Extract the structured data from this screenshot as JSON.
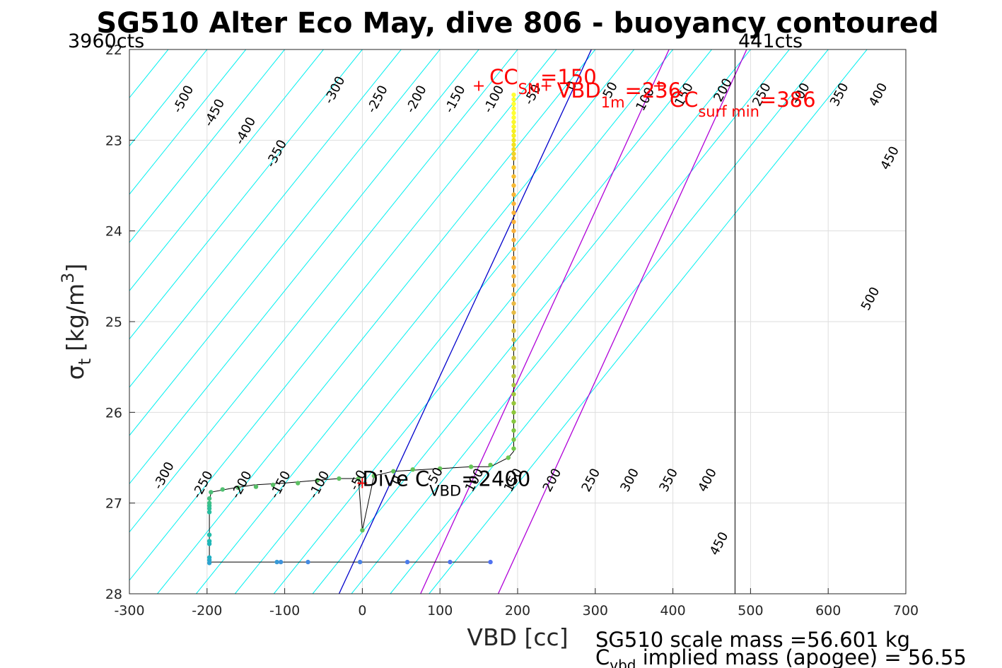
{
  "chart_data": {
    "type": "scatter",
    "title": "SG510 Alter Eco May, dive 806 - buoyancy contoured",
    "xlabel": "VBD [cc]",
    "ylabel_main": "σ",
    "ylabel_sub": "t",
    "ylabel_unit": "[kg/m",
    "ylabel_sup": "3",
    "ylabel_close": "]",
    "xlim": [
      -300,
      700
    ],
    "ylim": [
      22,
      28
    ],
    "y_reversed": true,
    "grid": true,
    "xticks": [
      "-300",
      "-200",
      "-100",
      "0",
      "100",
      "200",
      "300",
      "400",
      "500",
      "600",
      "700"
    ],
    "yticks": [
      "22",
      "23",
      "24",
      "25",
      "26",
      "27",
      "28"
    ],
    "counts_left": "3960cts",
    "counts_right": "441cts",
    "vline_x": 480,
    "contour_slope_cc_per_sigma": -94,
    "contour_levels": [
      -600,
      -550,
      -500,
      -450,
      -400,
      -350,
      -300,
      -250,
      -200,
      -150,
      -100,
      -50,
      0,
      50,
      100,
      150,
      200,
      250,
      300,
      350,
      400,
      450,
      500,
      550,
      600,
      650
    ],
    "contour_labels_top": [
      {
        "text": "-500",
        "x": -230,
        "y": 22.55
      },
      {
        "text": "-450",
        "x": -190,
        "y": 22.7
      },
      {
        "text": "-400",
        "x": -150,
        "y": 22.9
      },
      {
        "text": "-350",
        "x": -110,
        "y": 23.15
      },
      {
        "text": "-300",
        "x": -35,
        "y": 22.45
      },
      {
        "text": "-250",
        "x": 20,
        "y": 22.55
      },
      {
        "text": "-200",
        "x": 70,
        "y": 22.55
      },
      {
        "text": "-150",
        "x": 120,
        "y": 22.55
      },
      {
        "text": "-100",
        "x": 170,
        "y": 22.55
      },
      {
        "text": "-50",
        "x": 220,
        "y": 22.5
      },
      {
        "text": "0",
        "x": 270,
        "y": 22.4
      },
      {
        "text": "50",
        "x": 320,
        "y": 22.45
      },
      {
        "text": "100",
        "x": 365,
        "y": 22.55
      },
      {
        "text": "150",
        "x": 415,
        "y": 22.5
      },
      {
        "text": "200",
        "x": 465,
        "y": 22.45
      },
      {
        "text": "250",
        "x": 515,
        "y": 22.5
      },
      {
        "text": "300",
        "x": 565,
        "y": 22.5
      },
      {
        "text": "350",
        "x": 615,
        "y": 22.5
      },
      {
        "text": "400",
        "x": 665,
        "y": 22.5
      },
      {
        "text": "450",
        "x": 680,
        "y": 23.2
      },
      {
        "text": "500",
        "x": 655,
        "y": 24.75
      }
    ],
    "contour_labels_bottom": [
      {
        "text": "-300",
        "x": -255,
        "y": 26.7
      },
      {
        "text": "-250",
        "x": -205,
        "y": 26.8
      },
      {
        "text": "-200",
        "x": -155,
        "y": 26.8
      },
      {
        "text": "-150",
        "x": -105,
        "y": 26.8
      },
      {
        "text": "-100",
        "x": -55,
        "y": 26.8
      },
      {
        "text": "-50",
        "x": -5,
        "y": 26.75
      },
      {
        "text": "0",
        "x": 45,
        "y": 26.75
      },
      {
        "text": "50",
        "x": 95,
        "y": 26.7
      },
      {
        "text": "100",
        "x": 145,
        "y": 26.75
      },
      {
        "text": "150",
        "x": 195,
        "y": 26.75
      },
      {
        "text": "200",
        "x": 245,
        "y": 26.75
      },
      {
        "text": "250",
        "x": 295,
        "y": 26.75
      },
      {
        "text": "300",
        "x": 345,
        "y": 26.75
      },
      {
        "text": "350",
        "x": 395,
        "y": 26.75
      },
      {
        "text": "400",
        "x": 445,
        "y": 26.75
      },
      {
        "text": "450",
        "x": 460,
        "y": 27.45
      }
    ],
    "lines": [
      {
        "name": "CC_SM",
        "color": "#0000cc",
        "x_at_ylim": [
          295,
          -30
        ]
      },
      {
        "name": "VBD_1m",
        "color": "#b000d8",
        "x_at_ylim": [
          395,
          75
        ]
      },
      {
        "name": "CC_surf_min",
        "color": "#b000d8",
        "x_at_ylim": [
          495,
          175
        ]
      }
    ],
    "annotations": [
      {
        "main": "CC",
        "sub": "SM",
        "eq": "=150",
        "x": 150,
        "y": 22.35,
        "color": "#ff0000"
      },
      {
        "main": "VBD",
        "sub": "1m",
        "eq": "=236",
        "x": 237,
        "y": 22.5,
        "color": "#ff0000"
      },
      {
        "main": "CC",
        "sub": "surf min",
        "eq": "=386",
        "x": 382,
        "y": 22.6,
        "color": "#ff0000"
      },
      {
        "main": "Dive C",
        "sub": "VBD",
        "eq": "=2400",
        "x": 0,
        "y": 26.78,
        "color": "#000000"
      }
    ],
    "markers": [
      {
        "x": 150,
        "y": 22.4
      },
      {
        "x": 237,
        "y": 22.4
      },
      {
        "x": 382,
        "y": 22.4
      },
      {
        "x": 0,
        "y": 26.78
      }
    ],
    "profile_path": [
      [
        195,
        22.5
      ],
      [
        195,
        26.43
      ],
      [
        188,
        26.5
      ],
      [
        165,
        26.6
      ],
      [
        140,
        26.6
      ],
      [
        100,
        26.62
      ],
      [
        60,
        26.64
      ],
      [
        40,
        26.65
      ],
      [
        15,
        26.7
      ],
      [
        0,
        27.3
      ],
      [
        -5,
        26.73
      ],
      [
        -30,
        26.73
      ],
      [
        -60,
        26.75
      ],
      [
        -100,
        26.78
      ],
      [
        -140,
        26.8
      ],
      [
        -170,
        26.84
      ],
      [
        -195,
        26.88
      ],
      [
        -197,
        27.0
      ],
      [
        -197,
        27.4
      ],
      [
        -197,
        27.65
      ],
      [
        -100,
        27.65
      ],
      [
        0,
        27.65
      ],
      [
        100,
        27.65
      ],
      [
        165,
        27.65
      ]
    ],
    "points": [
      {
        "x": 195,
        "y": 22.5,
        "color": "#ffff33"
      },
      {
        "x": 195,
        "y": 22.55,
        "color": "#ffff33"
      },
      {
        "x": 195,
        "y": 22.6,
        "color": "#ffff33"
      },
      {
        "x": 195,
        "y": 22.65,
        "color": "#ffff33"
      },
      {
        "x": 195,
        "y": 22.7,
        "color": "#ffff33"
      },
      {
        "x": 195,
        "y": 22.75,
        "color": "#ffff33"
      },
      {
        "x": 195,
        "y": 22.8,
        "color": "#fbf72a"
      },
      {
        "x": 195,
        "y": 22.85,
        "color": "#fbf72a"
      },
      {
        "x": 195,
        "y": 22.9,
        "color": "#f7f020"
      },
      {
        "x": 195,
        "y": 22.95,
        "color": "#f7f020"
      },
      {
        "x": 195,
        "y": 23.0,
        "color": "#f3ea20"
      },
      {
        "x": 195,
        "y": 23.05,
        "color": "#f3e21e"
      },
      {
        "x": 195,
        "y": 23.1,
        "color": "#f3dc22"
      },
      {
        "x": 195,
        "y": 23.15,
        "color": "#f4d326"
      },
      {
        "x": 195,
        "y": 23.2,
        "color": "#f4cc28"
      },
      {
        "x": 195,
        "y": 23.3,
        "color": "#f5c42c"
      },
      {
        "x": 195,
        "y": 23.4,
        "color": "#f7bd30"
      },
      {
        "x": 195,
        "y": 23.5,
        "color": "#f8b933"
      },
      {
        "x": 195,
        "y": 23.6,
        "color": "#f9b535"
      },
      {
        "x": 195,
        "y": 23.7,
        "color": "#fab337"
      },
      {
        "x": 195,
        "y": 23.8,
        "color": "#fbb239"
      },
      {
        "x": 195,
        "y": 23.9,
        "color": "#fbb13a"
      },
      {
        "x": 195,
        "y": 24.0,
        "color": "#fbb13b"
      },
      {
        "x": 195,
        "y": 24.1,
        "color": "#fab13b"
      },
      {
        "x": 195,
        "y": 24.2,
        "color": "#f9b23c"
      },
      {
        "x": 195,
        "y": 24.3,
        "color": "#f8b33d"
      },
      {
        "x": 195,
        "y": 24.4,
        "color": "#f6b43e"
      },
      {
        "x": 195,
        "y": 24.5,
        "color": "#f4b63f"
      },
      {
        "x": 195,
        "y": 24.6,
        "color": "#f1b741"
      },
      {
        "x": 195,
        "y": 24.7,
        "color": "#eeb943"
      },
      {
        "x": 195,
        "y": 24.8,
        "color": "#ebba44"
      },
      {
        "x": 195,
        "y": 24.9,
        "color": "#e6bc45"
      },
      {
        "x": 195,
        "y": 25.0,
        "color": "#e0bd45"
      },
      {
        "x": 195,
        "y": 25.1,
        "color": "#d9bf45"
      },
      {
        "x": 195,
        "y": 25.2,
        "color": "#d2c044"
      },
      {
        "x": 195,
        "y": 25.3,
        "color": "#cbc243"
      },
      {
        "x": 195,
        "y": 25.4,
        "color": "#c3c342"
      },
      {
        "x": 195,
        "y": 25.5,
        "color": "#bbc440"
      },
      {
        "x": 195,
        "y": 25.6,
        "color": "#b2c43e"
      },
      {
        "x": 195,
        "y": 25.7,
        "color": "#a9c53c"
      },
      {
        "x": 195,
        "y": 25.8,
        "color": "#a0c63b"
      },
      {
        "x": 195,
        "y": 25.9,
        "color": "#97c73b"
      },
      {
        "x": 195,
        "y": 26.0,
        "color": "#8ec83b"
      },
      {
        "x": 195,
        "y": 26.1,
        "color": "#86c83d"
      },
      {
        "x": 195,
        "y": 26.2,
        "color": "#7ec840"
      },
      {
        "x": 195,
        "y": 26.3,
        "color": "#77c845"
      },
      {
        "x": 195,
        "y": 26.4,
        "color": "#70c84b"
      },
      {
        "x": 188,
        "y": 26.5,
        "color": "#6bc84f"
      },
      {
        "x": 165,
        "y": 26.58,
        "color": "#66c752"
      },
      {
        "x": 140,
        "y": 26.6,
        "color": "#63c655"
      },
      {
        "x": 100,
        "y": 26.62,
        "color": "#61c557"
      },
      {
        "x": 65,
        "y": 26.63,
        "color": "#60c458"
      },
      {
        "x": 40,
        "y": 26.65,
        "color": "#60c35a"
      },
      {
        "x": 15,
        "y": 26.7,
        "color": "#5fc35b"
      },
      {
        "x": 0,
        "y": 27.3,
        "color": "#5fc25c"
      },
      {
        "x": -5,
        "y": 26.73,
        "color": "#5fc25d"
      },
      {
        "x": -30,
        "y": 26.73,
        "color": "#5ec15f"
      },
      {
        "x": -58,
        "y": 26.75,
        "color": "#5dc060"
      },
      {
        "x": -83,
        "y": 26.78,
        "color": "#5cc062"
      },
      {
        "x": -115,
        "y": 26.8,
        "color": "#5abf65"
      },
      {
        "x": -137,
        "y": 26.82,
        "color": "#58bf68"
      },
      {
        "x": -160,
        "y": 26.83,
        "color": "#55bf6c"
      },
      {
        "x": -180,
        "y": 26.85,
        "color": "#51c071"
      },
      {
        "x": -195,
        "y": 26.88,
        "color": "#4cc077"
      },
      {
        "x": -197,
        "y": 26.95,
        "color": "#45c07e"
      },
      {
        "x": -197,
        "y": 27.0,
        "color": "#3ec086"
      },
      {
        "x": -197,
        "y": 27.03,
        "color": "#36c08e"
      },
      {
        "x": -197,
        "y": 27.06,
        "color": "#2fbf97"
      },
      {
        "x": -197,
        "y": 27.1,
        "color": "#28bea0"
      },
      {
        "x": -197,
        "y": 27.35,
        "color": "#22bca9"
      },
      {
        "x": -197,
        "y": 27.42,
        "color": "#1fb9b2"
      },
      {
        "x": -197,
        "y": 27.45,
        "color": "#1db5ba"
      },
      {
        "x": -197,
        "y": 27.6,
        "color": "#1fb0c2"
      },
      {
        "x": -197,
        "y": 27.63,
        "color": "#25aac9"
      },
      {
        "x": -197,
        "y": 27.66,
        "color": "#2ea3d0"
      },
      {
        "x": -110,
        "y": 27.65,
        "color": "#389bd6"
      },
      {
        "x": -105,
        "y": 27.65,
        "color": "#3f93dc"
      },
      {
        "x": -70,
        "y": 27.65,
        "color": "#448be2"
      },
      {
        "x": -3,
        "y": 27.65,
        "color": "#4983e7"
      },
      {
        "x": 58,
        "y": 27.65,
        "color": "#4c7ceb"
      },
      {
        "x": 113,
        "y": 27.65,
        "color": "#4e76ee"
      },
      {
        "x": 165,
        "y": 27.65,
        "color": "#5072f0"
      }
    ]
  },
  "footer": {
    "scale_mass": "SG510 scale mass =56.601 kg",
    "implied_main": "C",
    "implied_sub": "vbd",
    "implied_rest": " implied mass (apogee) = 56.55"
  }
}
